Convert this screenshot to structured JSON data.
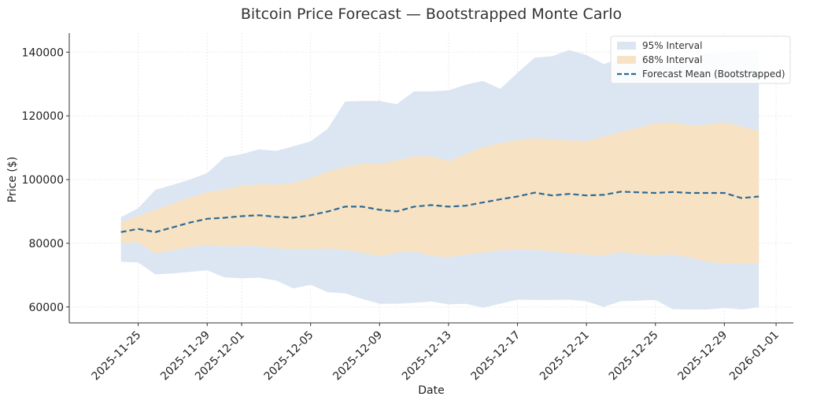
{
  "chart_data": {
    "type": "line",
    "title": "Bitcoin Price Forecast — Bootstrapped Monte Carlo",
    "xlabel": "Date",
    "ylabel": "Price ($)",
    "x_ticks": [
      "2025-11-25",
      "2025-11-29",
      "2025-12-01",
      "2025-12-05",
      "2025-12-09",
      "2025-12-13",
      "2025-12-17",
      "2025-12-21",
      "2025-12-25",
      "2025-12-29",
      "2026-01-01"
    ],
    "y_ticks": [
      60000,
      80000,
      100000,
      120000,
      140000
    ],
    "xlim": [
      "2025-11-21",
      "2026-01-02"
    ],
    "ylim": [
      55000,
      146000
    ],
    "grid": true,
    "legend_position": "top-right",
    "dates": [
      "2025-11-24",
      "2025-11-25",
      "2025-11-26",
      "2025-11-27",
      "2025-11-28",
      "2025-11-29",
      "2025-11-30",
      "2025-12-01",
      "2025-12-02",
      "2025-12-03",
      "2025-12-04",
      "2025-12-05",
      "2025-12-06",
      "2025-12-07",
      "2025-12-08",
      "2025-12-09",
      "2025-12-10",
      "2025-12-11",
      "2025-12-12",
      "2025-12-13",
      "2025-12-14",
      "2025-12-15",
      "2025-12-16",
      "2025-12-17",
      "2025-12-18",
      "2025-12-19",
      "2025-12-20",
      "2025-12-21",
      "2025-12-22",
      "2025-12-23",
      "2025-12-24",
      "2025-12-25",
      "2025-12-26",
      "2025-12-27",
      "2025-12-28",
      "2025-12-29",
      "2025-12-30",
      "2025-12-31"
    ],
    "series": [
      {
        "name": "95% Interval",
        "kind": "band",
        "color": "#dbe6f2",
        "lower": [
          74200,
          74000,
          70200,
          70500,
          71000,
          71500,
          69300,
          69000,
          69200,
          68300,
          65800,
          67000,
          64600,
          64300,
          62500,
          61000,
          61000,
          61300,
          61700,
          60800,
          61000,
          59800,
          61000,
          62300,
          62200,
          62200,
          62300,
          61800,
          60000,
          61800,
          62000,
          62200,
          59300,
          59200,
          59200,
          59700,
          59200,
          59900
        ],
        "upper": [
          88200,
          91000,
          96800,
          98300,
          100000,
          102000,
          107000,
          108000,
          109500,
          109000,
          110500,
          112000,
          116000,
          124500,
          124700,
          124700,
          123700,
          127700,
          127700,
          128000,
          129800,
          131000,
          128500,
          133500,
          138300,
          138700,
          140700,
          139100,
          136300,
          138000,
          137500,
          137500,
          136000,
          137800,
          139500,
          140000,
          140300,
          140800
        ]
      },
      {
        "name": "68% Interval",
        "kind": "band",
        "color": "#f7e3c4",
        "lower": [
          80000,
          80300,
          76800,
          77800,
          78800,
          79400,
          79000,
          79200,
          79000,
          78400,
          78200,
          78100,
          78400,
          77900,
          77000,
          76000,
          77000,
          77500,
          76000,
          75600,
          76500,
          77000,
          77800,
          78000,
          78000,
          77400,
          76800,
          76500,
          76200,
          77200,
          76600,
          76300,
          76500,
          75600,
          74200,
          73700,
          73500,
          73500
        ],
        "upper": [
          86500,
          88600,
          90500,
          92500,
          94400,
          96000,
          97000,
          98000,
          98500,
          98500,
          99000,
          100500,
          102500,
          104000,
          105000,
          105000,
          106000,
          107300,
          107300,
          105800,
          108000,
          110200,
          111400,
          112400,
          113000,
          112700,
          112300,
          112100,
          113500,
          115000,
          116300,
          117700,
          118000,
          117000,
          117300,
          118000,
          116700,
          115300
        ]
      },
      {
        "name": "Forecast Mean (Bootstrapped)",
        "kind": "line",
        "color": "#2f6a94",
        "values": [
          83500,
          84500,
          83500,
          85000,
          86500,
          87700,
          88000,
          88500,
          88800,
          88300,
          88000,
          88800,
          90000,
          91500,
          91500,
          90500,
          90000,
          91500,
          92000,
          91500,
          91800,
          92800,
          93800,
          94700,
          95900,
          95000,
          95500,
          95000,
          95200,
          96200,
          96000,
          95800,
          96100,
          95800,
          95800,
          95800,
          94200,
          94700
        ]
      }
    ]
  }
}
